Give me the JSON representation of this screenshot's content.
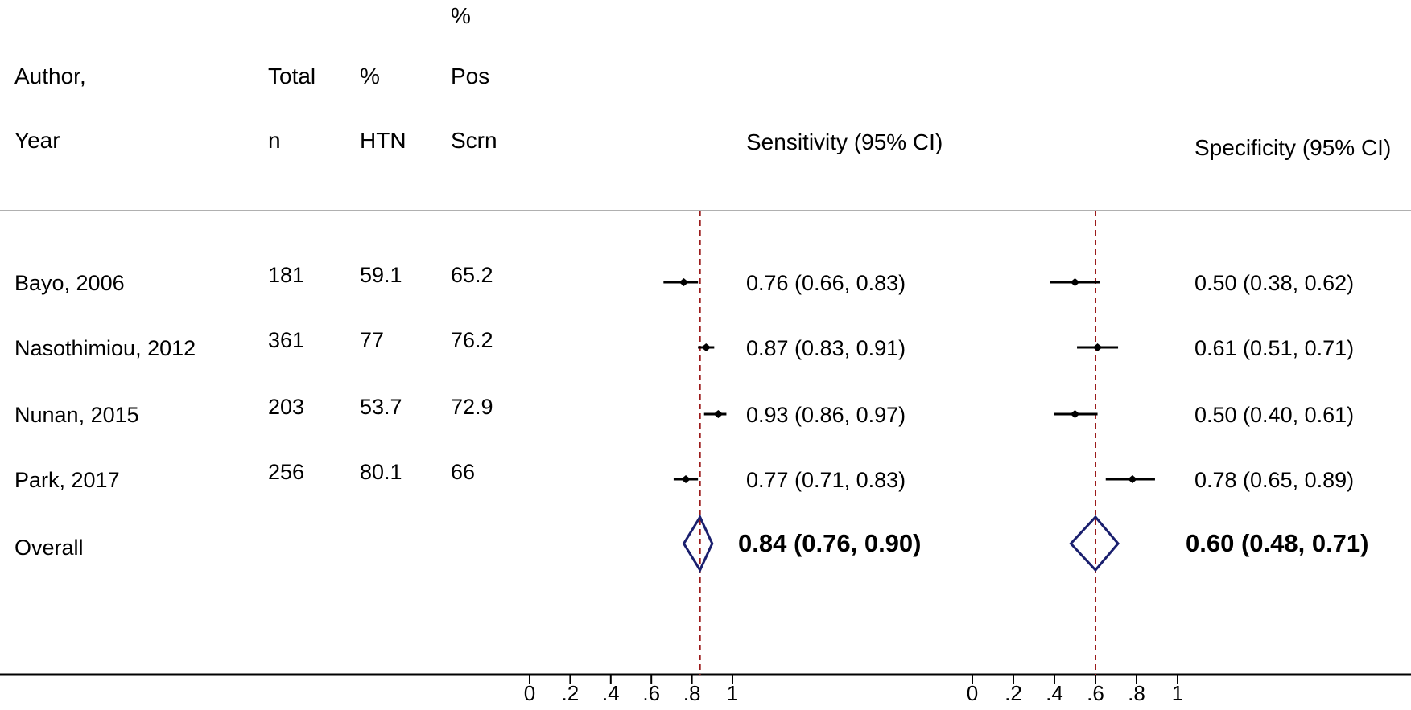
{
  "colors": {
    "ref_line": "#9b1b1b",
    "diamond": "#1a1f6e",
    "marker": "#000000",
    "rule": "#b0b0b0"
  },
  "headers": {
    "author": [
      "Author,",
      "Year"
    ],
    "total": [
      "Total",
      "n"
    ],
    "htn": [
      "%",
      "HTN"
    ],
    "pos": [
      "%",
      "Pos",
      "Scrn"
    ],
    "sens": "Sensitivity (95% CI)",
    "spec": "Specificity (95% CI)"
  },
  "overall_label": "Overall",
  "chart_data": {
    "type": "forest",
    "studies": [
      {
        "author": "Bayo, 2006",
        "n": "181",
        "htn": "59.1",
        "pos": "65.2",
        "sens": 0.76,
        "sens_lo": 0.66,
        "sens_hi": 0.83,
        "sens_text": "0.76 (0.66, 0.83)",
        "spec": 0.5,
        "spec_lo": 0.38,
        "spec_hi": 0.62,
        "spec_text": "0.50 (0.38, 0.62)"
      },
      {
        "author": "Nasothimiou, 2012",
        "n": "361",
        "htn": "77",
        "pos": "76.2",
        "sens": 0.87,
        "sens_lo": 0.83,
        "sens_hi": 0.91,
        "sens_text": "0.87 (0.83, 0.91)",
        "spec": 0.61,
        "spec_lo": 0.51,
        "spec_hi": 0.71,
        "spec_text": "0.61 (0.51, 0.71)"
      },
      {
        "author": "Nunan, 2015",
        "n": "203",
        "htn": "53.7",
        "pos": "72.9",
        "sens": 0.93,
        "sens_lo": 0.86,
        "sens_hi": 0.97,
        "sens_text": "0.93 (0.86, 0.97)",
        "spec": 0.5,
        "spec_lo": 0.4,
        "spec_hi": 0.61,
        "spec_text": "0.50 (0.40, 0.61)"
      },
      {
        "author": "Park, 2017",
        "n": "256",
        "htn": "80.1",
        "pos": "66",
        "sens": 0.77,
        "sens_lo": 0.71,
        "sens_hi": 0.83,
        "sens_text": "0.77 (0.71, 0.83)",
        "spec": 0.78,
        "spec_lo": 0.65,
        "spec_hi": 0.89,
        "spec_text": "0.78 (0.65, 0.89)"
      }
    ],
    "overall": {
      "sens": 0.84,
      "sens_lo": 0.76,
      "sens_hi": 0.9,
      "sens_text": "0.84 (0.76, 0.90)",
      "spec": 0.6,
      "spec_lo": 0.48,
      "spec_hi": 0.71,
      "spec_text": "0.60 (0.48, 0.71)"
    },
    "axis_ticks": [
      "0",
      ".2",
      ".4",
      ".6",
      ".8",
      "1"
    ],
    "axis_tick_values": [
      0,
      0.2,
      0.4,
      0.6,
      0.8,
      1
    ],
    "xlim": [
      0,
      1
    ]
  }
}
